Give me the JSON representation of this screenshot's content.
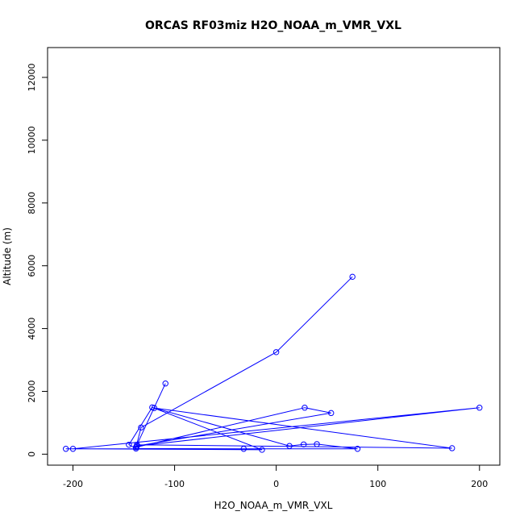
{
  "chart_data": {
    "type": "line",
    "title": "ORCAS RF03miz H2O_NOAA_m_VMR_VXL",
    "xlabel": "H2O_NOAA_m_VMR_VXL",
    "ylabel": "Altitude (m)",
    "xlim": [
      -225,
      220
    ],
    "ylim": [
      -350,
      12950
    ],
    "x_ticks": [
      -200,
      -100,
      0,
      100,
      200
    ],
    "y_ticks": [
      0,
      2000,
      4000,
      6000,
      8000,
      10000,
      12000
    ],
    "grid": false,
    "legend": "none",
    "series": [
      {
        "color": "#0000ff",
        "marker": "open-circle",
        "points": [
          {
            "x": 75,
            "y": 5650
          },
          {
            "x": 0,
            "y": 3250
          },
          {
            "x": -133,
            "y": 850
          },
          {
            "x": -138,
            "y": 220
          },
          {
            "x": 28,
            "y": 1480
          },
          {
            "x": 54,
            "y": 1310
          },
          {
            "x": -137,
            "y": 260
          },
          {
            "x": 200,
            "y": 1480
          },
          {
            "x": -200,
            "y": 170
          },
          {
            "x": -32,
            "y": 170
          },
          {
            "x": -138,
            "y": 180
          },
          {
            "x": -145,
            "y": 300
          },
          {
            "x": -122,
            "y": 1490
          },
          {
            "x": -14,
            "y": 140
          },
          {
            "x": -207,
            "y": 170
          },
          {
            "x": 80,
            "y": 170
          },
          {
            "x": 40,
            "y": 320
          },
          {
            "x": 27,
            "y": 310
          },
          {
            "x": 13,
            "y": 260
          },
          {
            "x": -120,
            "y": 1470
          },
          {
            "x": 173,
            "y": 190
          },
          {
            "x": -137,
            "y": 300
          },
          {
            "x": -109,
            "y": 2250
          }
        ]
      }
    ]
  }
}
